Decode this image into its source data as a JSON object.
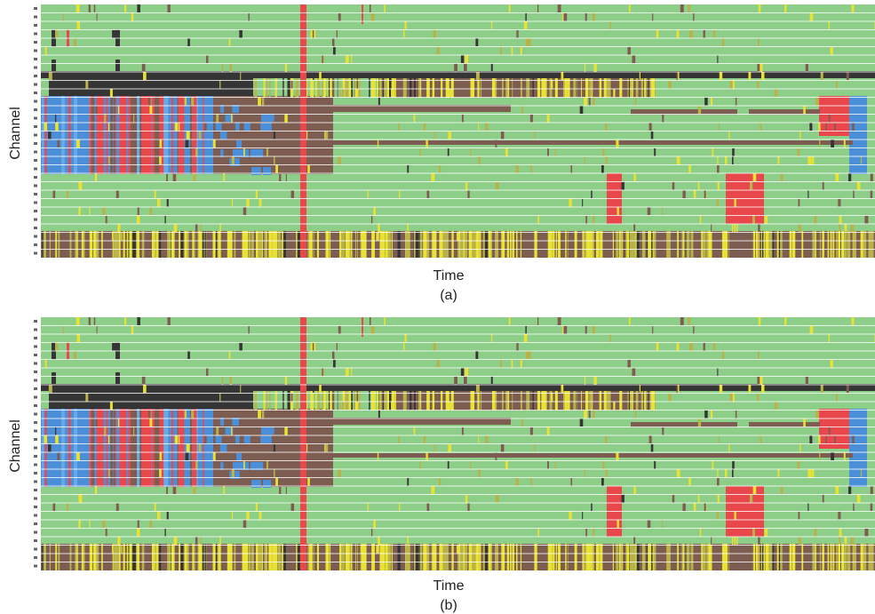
{
  "panels": [
    {
      "y_label": "Channel",
      "x_label": "Time",
      "caption": "(a)"
    },
    {
      "y_label": "Channel",
      "x_label": "Time",
      "caption": "(b)"
    }
  ]
}
